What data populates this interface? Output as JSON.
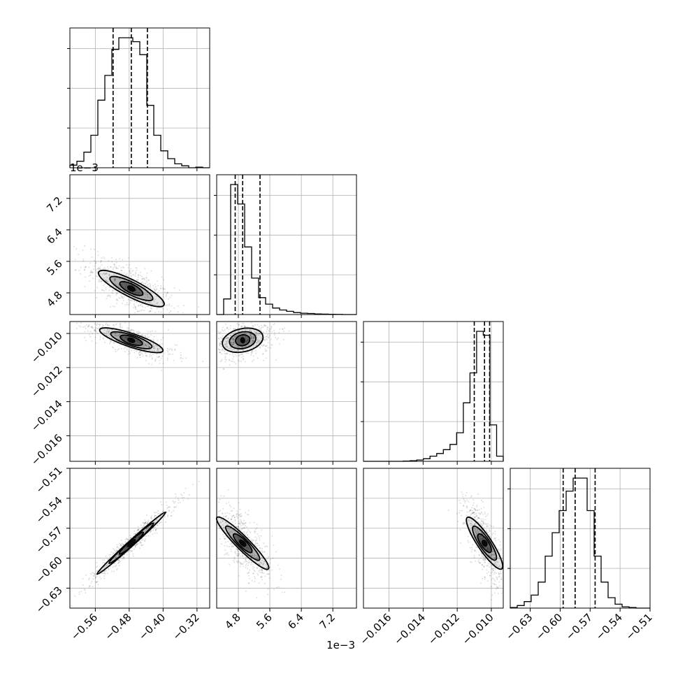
{
  "chart_data": {
    "type": "corner",
    "variables": [
      {
        "range": [
          -0.62,
          -0.29
        ],
        "ticks": [
          -0.56,
          -0.48,
          -0.4,
          -0.32
        ],
        "tick_labels": [
          "−0.56",
          "−0.48",
          "−0.40",
          "−0.32"
        ],
        "offset": "",
        "quantiles": [
          -0.518,
          -0.475,
          -0.437
        ]
      },
      {
        "range": [
          4.25,
          7.8
        ],
        "ticks": [
          4.8,
          5.6,
          6.4,
          7.2
        ],
        "tick_labels": [
          "4.8",
          "5.6",
          "6.4",
          "7.2"
        ],
        "offset": "1e−3",
        "quantiles": [
          4.72,
          4.91,
          5.35
        ]
      },
      {
        "range": [
          -0.0175,
          -0.0093
        ],
        "ticks": [
          -0.016,
          -0.014,
          -0.012,
          -0.01
        ],
        "tick_labels": [
          "−0.016",
          "−0.014",
          "−0.012",
          "−0.010"
        ],
        "offset": "",
        "quantiles": [
          -0.011,
          -0.0104,
          -0.0101
        ]
      },
      {
        "range": [
          -0.65,
          -0.51
        ],
        "ticks": [
          -0.63,
          -0.6,
          -0.57,
          -0.54,
          -0.51
        ],
        "tick_labels": [
          "−0.63",
          "−0.60",
          "−0.57",
          "−0.54",
          "−0.51"
        ],
        "offset": "",
        "quantiles": [
          -0.597,
          -0.585,
          -0.565
        ]
      }
    ],
    "histograms": [
      [
        0.02,
        0.05,
        0.12,
        0.25,
        0.52,
        0.71,
        0.91,
        1.0,
        1.0,
        0.97,
        0.87,
        0.48,
        0.25,
        0.13,
        0.07,
        0.03,
        0.015,
        0.0,
        0.005,
        0.0
      ],
      [
        0.0,
        0.12,
        1.0,
        0.85,
        0.52,
        0.28,
        0.13,
        0.08,
        0.05,
        0.035,
        0.025,
        0.015,
        0.01,
        0.008,
        0.005,
        0.003,
        0.002,
        0.001,
        0.0,
        0.0
      ],
      [
        0.0,
        0.0,
        0.0,
        0.0,
        0.0,
        0.0,
        0.002,
        0.005,
        0.01,
        0.02,
        0.04,
        0.06,
        0.09,
        0.13,
        0.22,
        0.45,
        0.68,
        1.0,
        0.97,
        0.28,
        0.04
      ],
      [
        0.005,
        0.02,
        0.05,
        0.1,
        0.2,
        0.4,
        0.58,
        0.75,
        0.9,
        1.0,
        1.0,
        0.75,
        0.4,
        0.2,
        0.08,
        0.03,
        0.01,
        0.005,
        0.0,
        0.0
      ]
    ],
    "correlations": {
      "1-0": -0.7,
      "2-0": -0.75,
      "2-1": 0.35,
      "3-0": 0.97,
      "3-1": -0.78,
      "3-2": -0.72
    }
  }
}
